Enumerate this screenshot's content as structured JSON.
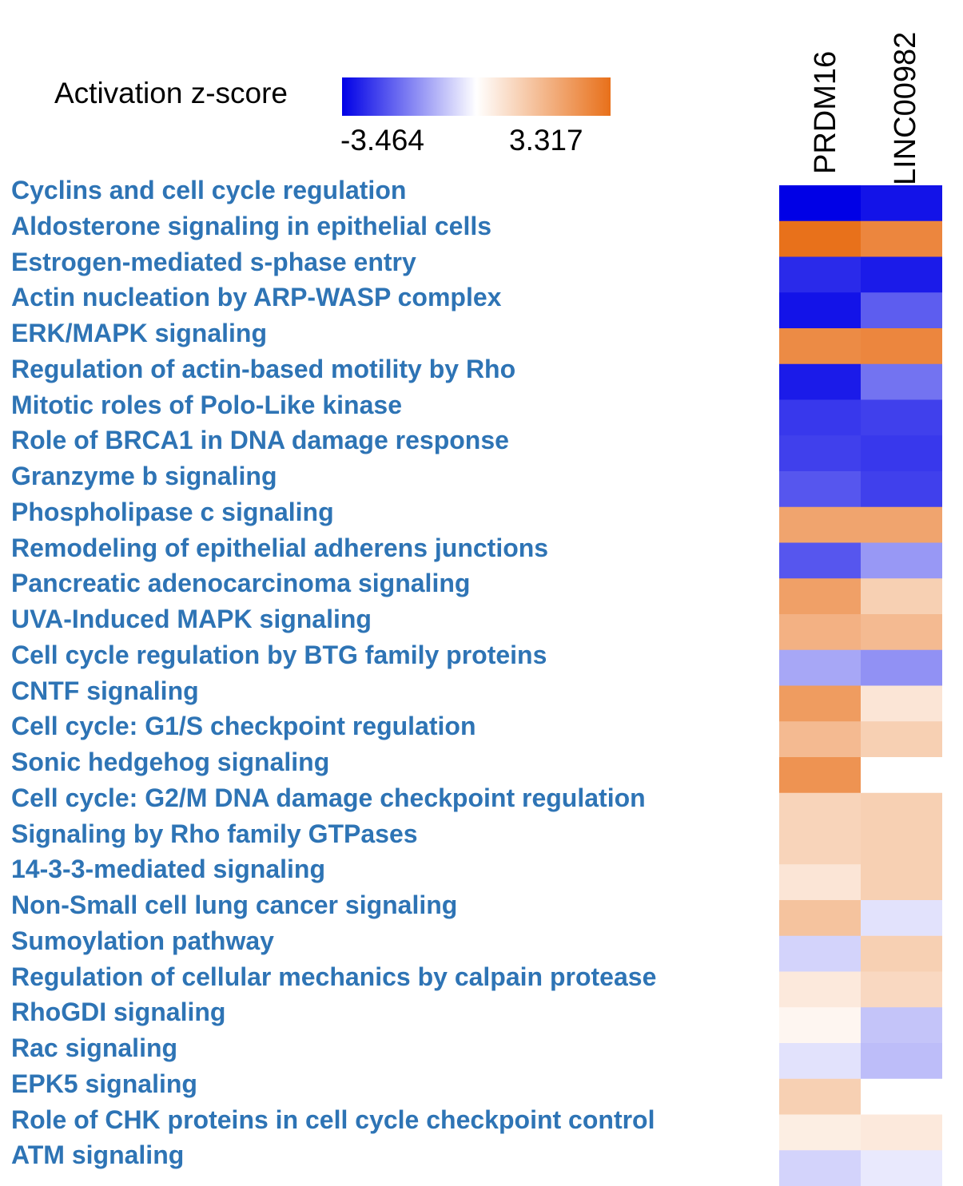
{
  "chart_data": {
    "type": "heatmap",
    "legend": {
      "title": "Activation z-score",
      "min": -3.464,
      "max": 3.317,
      "min_label": "-3.464",
      "max_label": "3.317",
      "colors": {
        "low": "#0000e6",
        "mid": "#ffffff",
        "high": "#e8701a"
      }
    },
    "columns": [
      "PRDM16",
      "LINC00982"
    ],
    "rows": [
      "Cyclins and cell cycle regulation",
      "Aldosterone signaling in epithelial cells",
      "Estrogen-mediated s-phase entry",
      "Actin nucleation by ARP-WASP complex",
      "ERK/MAPK signaling",
      "Regulation of actin-based motility by Rho",
      "Mitotic roles of Polo-Like kinase",
      "Role of BRCA1 in DNA damage response",
      "Granzyme b signaling",
      "Phospholipase c signaling",
      "Remodeling of epithelial adherens junctions",
      "Pancreatic adenocarcinoma signaling",
      "UVA-Induced MAPK signaling",
      "Cell cycle regulation by BTG family proteins",
      "CNTF signaling",
      "Cell cycle: G1/S checkpoint regulation",
      "Sonic hedgehog signaling",
      "Cell cycle: G2/M DNA damage checkpoint regulation",
      "Signaling by Rho family GTPases",
      "14-3-3-mediated signaling",
      "Non-Small cell lung cancer signaling",
      "Sumoylation pathway",
      "Regulation of cellular mechanics by calpain protease",
      "RhoGDI signaling",
      "Rac signaling",
      "EPK5  signaling",
      "Role of CHK proteins in cell cycle checkpoint control",
      "ATM signaling"
    ],
    "values": [
      [
        -3.46,
        -3.2
      ],
      [
        3.3,
        2.8
      ],
      [
        -2.9,
        -3.1
      ],
      [
        -3.2,
        -2.2
      ],
      [
        2.7,
        2.8
      ],
      [
        -3.1,
        -1.9
      ],
      [
        -2.7,
        -2.6
      ],
      [
        -2.6,
        -2.7
      ],
      [
        -2.3,
        -2.6
      ],
      [
        2.1,
        2.1
      ],
      [
        -2.3,
        -1.4
      ],
      [
        2.2,
        1.1
      ],
      [
        1.8,
        1.6
      ],
      [
        -1.2,
        -1.5
      ],
      [
        2.3,
        0.6
      ],
      [
        1.6,
        1.1
      ],
      [
        2.5,
        null
      ],
      [
        1.0,
        1.1
      ],
      [
        1.0,
        1.1
      ],
      [
        0.6,
        1.1
      ],
      [
        1.4,
        -0.4
      ],
      [
        -0.6,
        1.1
      ],
      [
        0.5,
        0.9
      ],
      [
        0.2,
        -0.8
      ],
      [
        -0.4,
        -0.9
      ],
      [
        1.1,
        null
      ],
      [
        0.4,
        0.5
      ],
      [
        -0.6,
        -0.3
      ]
    ]
  }
}
